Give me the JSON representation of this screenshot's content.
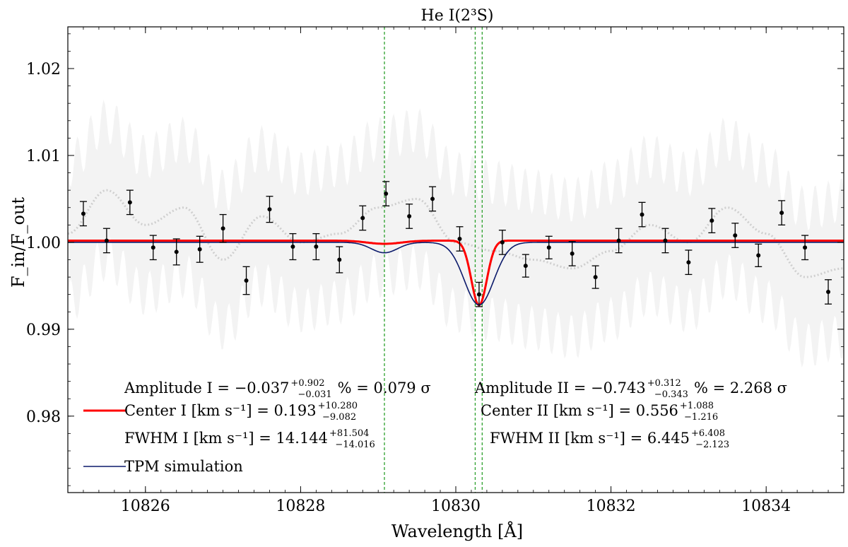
{
  "chart_data": {
    "type": "scatter",
    "title": "He I(2³S)",
    "xlabel": "Wavelength [Å]",
    "ylabel": "F_in/F_out",
    "xlim": [
      10825,
      10835
    ],
    "ylim": [
      0.9712,
      1.0248
    ],
    "xticks": [
      10826,
      10828,
      10830,
      10832,
      10834
    ],
    "xtick_labels": [
      "10826",
      "10828",
      "10830",
      "10832",
      "10834"
    ],
    "yticks": [
      0.98,
      0.99,
      1.0,
      1.01,
      1.02
    ],
    "ytick_labels": [
      "0.98",
      "0.99",
      "1.00",
      "1.01",
      "1.02"
    ],
    "binned_points": {
      "x": [
        10825.2,
        10825.5,
        10825.8,
        10826.1,
        10826.4,
        10826.7,
        10827.0,
        10827.3,
        10827.6,
        10827.9,
        10828.2,
        10828.5,
        10828.8,
        10829.1,
        10829.4,
        10829.7,
        10830.05,
        10830.3,
        10830.6,
        10830.9,
        10831.2,
        10831.5,
        10831.8,
        10832.1,
        10832.4,
        10832.7,
        10833.0,
        10833.3,
        10833.6,
        10833.9,
        10834.2,
        10834.5,
        10834.8
      ],
      "y": [
        1.0033,
        1.0002,
        1.0046,
        0.9994,
        0.9989,
        0.9992,
        1.0016,
        0.9956,
        1.0038,
        0.9995,
        0.9995,
        0.998,
        1.0028,
        1.0056,
        1.003,
        1.005,
        1.0004,
        0.994,
        1.0,
        0.9973,
        0.9994,
        0.9987,
        0.996,
        1.0002,
        1.0032,
        1.0002,
        0.9977,
        1.0025,
        1.0008,
        0.9985,
        1.0034,
        0.9994,
        0.9943
      ],
      "yerr": [
        0.0014,
        0.0014,
        0.0014,
        0.0014,
        0.0015,
        0.0015,
        0.0016,
        0.0016,
        0.0015,
        0.0015,
        0.0015,
        0.0015,
        0.0014,
        0.0014,
        0.0014,
        0.0014,
        0.0014,
        0.0014,
        0.0014,
        0.0013,
        0.0013,
        0.0014,
        0.0013,
        0.0014,
        0.0014,
        0.0014,
        0.0014,
        0.0014,
        0.0014,
        0.0013,
        0.0014,
        0.0014,
        0.0014
      ]
    },
    "background_band": {
      "x": [
        10825.0,
        10825.5,
        10826.0,
        10826.5,
        10827.0,
        10827.5,
        10828.0,
        10828.5,
        10829.0,
        10829.5,
        10830.0,
        10830.5,
        10831.0,
        10831.5,
        10832.0,
        10832.5,
        10833.0,
        10833.5,
        10834.0,
        10834.5,
        10835.0
      ],
      "center": [
        1.001,
        1.006,
        1.002,
        1.004,
        0.998,
        1.003,
        1.0,
        1.001,
        1.004,
        1.005,
        1.0,
        0.999,
        0.998,
        0.997,
        0.999,
        1.002,
        1.0,
        1.004,
        1.001,
        0.996,
        0.997
      ],
      "halfwidth": 0.0105
    },
    "series": [
      {
        "name": "Center I [km s⁻¹] = 0.193",
        "kind": "double_gaussian_fit",
        "color": "#ff0000",
        "baseline": 1.0002,
        "components": [
          {
            "center": 10829.08,
            "sigma": 0.22,
            "depth": 0.00037
          },
          {
            "center": 10830.3,
            "sigma": 0.1,
            "depth": 0.00743
          }
        ]
      },
      {
        "name": "TPM simulation",
        "kind": "double_gaussian_model",
        "color": "#0b1a6b",
        "baseline": 1.0,
        "components": [
          {
            "center": 10829.08,
            "sigma": 0.17,
            "depth": 0.0012
          },
          {
            "center": 10830.3,
            "sigma": 0.19,
            "depth": 0.0072
          }
        ]
      }
    ],
    "vlines": {
      "x": [
        10829.08,
        10830.25,
        10830.34
      ],
      "color": "#2ca02c",
      "style": "dashed"
    },
    "annotations": {
      "amp1": "Amplitude I = −0.037",
      "amp1_sup": "+0.902",
      "amp1_sub": "−0.031",
      "amp1_tail": "% = 0.079 σ",
      "center1": "Center I [km s⁻¹] = 0.193",
      "center1_sup": "+10.280",
      "center1_sub": "−9.082",
      "fwhm1": "FWHM I [km s⁻¹] = 14.144",
      "fwhm1_sup": "+81.504",
      "fwhm1_sub": "−14.016",
      "amp2": "Amplitude II = −0.743",
      "amp2_sup": "+0.312",
      "amp2_sub": "−0.343",
      "amp2_tail": "% = 2.268 σ",
      "center2": "Center II [km s⁻¹] = 0.556",
      "center2_sup": "+1.088",
      "center2_sub": "−1.216",
      "fwhm2": "FWHM II [km s⁻¹] = 6.445",
      "fwhm2_sup": "+6.408",
      "fwhm2_sub": "−2.123"
    },
    "legend_placement": "lower-left",
    "grid": false
  }
}
